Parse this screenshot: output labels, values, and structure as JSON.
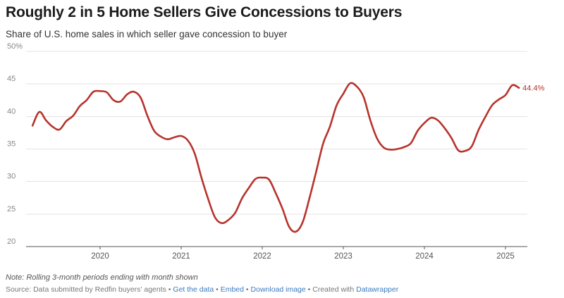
{
  "header": {
    "title": "Roughly 2 in 5 Home Sellers Give Concessions to Buyers",
    "subtitle": "Share of U.S. home sales in which seller gave concession to buyer"
  },
  "footer": {
    "note": "Note: Rolling 3-month periods ending with month shown",
    "source_prefix": "Source: Data submitted by Redfin buyers' agents",
    "sep": " • ",
    "get_data_label": "Get the data",
    "embed_label": "Embed",
    "download_label": "Download image",
    "created_with_prefix": " • Created with ",
    "datawrapper_label": "Datawrapper"
  },
  "colors": {
    "line": "#b7332c",
    "grid": "#e3e3e3",
    "link": "#3b7bbf"
  },
  "chart_data": {
    "type": "line",
    "title": "Roughly 2 in 5 Home Sellers Give Concessions to Buyers",
    "subtitle": "Share of U.S. home sales in which seller gave concession to buyer",
    "xlabel": "",
    "ylabel": "",
    "ylim": [
      20,
      50
    ],
    "yticks": [
      20,
      25,
      30,
      35,
      40,
      45,
      50
    ],
    "ytick_labels": [
      "20",
      "25",
      "30",
      "35",
      "40",
      "45",
      "50%"
    ],
    "xtick_labels": [
      "2020",
      "2021",
      "2022",
      "2023",
      "2024",
      "2025"
    ],
    "grid": true,
    "end_label": "44.4%",
    "series": [
      {
        "values": [
          {
            "x": "2019-03",
            "y": 38.6
          },
          {
            "x": "2019-04",
            "y": 40.7
          },
          {
            "x": "2019-05",
            "y": 39.4
          },
          {
            "x": "2019-06",
            "y": 38.4
          },
          {
            "x": "2019-07",
            "y": 38.0
          },
          {
            "x": "2019-08",
            "y": 39.3
          },
          {
            "x": "2019-09",
            "y": 40.1
          },
          {
            "x": "2019-10",
            "y": 41.6
          },
          {
            "x": "2019-11",
            "y": 42.5
          },
          {
            "x": "2019-12",
            "y": 43.8
          },
          {
            "x": "2020-01",
            "y": 43.9
          },
          {
            "x": "2020-02",
            "y": 43.7
          },
          {
            "x": "2020-03",
            "y": 42.5
          },
          {
            "x": "2020-04",
            "y": 42.3
          },
          {
            "x": "2020-05",
            "y": 43.4
          },
          {
            "x": "2020-06",
            "y": 43.8
          },
          {
            "x": "2020-07",
            "y": 42.9
          },
          {
            "x": "2020-08",
            "y": 40.1
          },
          {
            "x": "2020-09",
            "y": 37.8
          },
          {
            "x": "2020-10",
            "y": 36.9
          },
          {
            "x": "2020-11",
            "y": 36.5
          },
          {
            "x": "2020-12",
            "y": 36.8
          },
          {
            "x": "2021-01",
            "y": 37.0
          },
          {
            "x": "2021-02",
            "y": 36.3
          },
          {
            "x": "2021-03",
            "y": 34.3
          },
          {
            "x": "2021-04",
            "y": 30.6
          },
          {
            "x": "2021-05",
            "y": 27.3
          },
          {
            "x": "2021-06",
            "y": 24.5
          },
          {
            "x": "2021-07",
            "y": 23.6
          },
          {
            "x": "2021-08",
            "y": 24.1
          },
          {
            "x": "2021-09",
            "y": 25.2
          },
          {
            "x": "2021-10",
            "y": 27.4
          },
          {
            "x": "2021-11",
            "y": 29.0
          },
          {
            "x": "2021-12",
            "y": 30.4
          },
          {
            "x": "2022-01",
            "y": 30.6
          },
          {
            "x": "2022-02",
            "y": 30.3
          },
          {
            "x": "2022-03",
            "y": 28.2
          },
          {
            "x": "2022-04",
            "y": 25.8
          },
          {
            "x": "2022-05",
            "y": 23.0
          },
          {
            "x": "2022-06",
            "y": 22.3
          },
          {
            "x": "2022-07",
            "y": 23.8
          },
          {
            "x": "2022-08",
            "y": 27.5
          },
          {
            "x": "2022-09",
            "y": 31.6
          },
          {
            "x": "2022-10",
            "y": 35.8
          },
          {
            "x": "2022-11",
            "y": 38.4
          },
          {
            "x": "2022-12",
            "y": 41.7
          },
          {
            "x": "2023-01",
            "y": 43.5
          },
          {
            "x": "2023-02",
            "y": 45.1
          },
          {
            "x": "2023-03",
            "y": 44.6
          },
          {
            "x": "2023-04",
            "y": 43.0
          },
          {
            "x": "2023-05",
            "y": 39.4
          },
          {
            "x": "2023-06",
            "y": 36.6
          },
          {
            "x": "2023-07",
            "y": 35.2
          },
          {
            "x": "2023-08",
            "y": 34.9
          },
          {
            "x": "2023-09",
            "y": 35.0
          },
          {
            "x": "2023-10",
            "y": 35.3
          },
          {
            "x": "2023-11",
            "y": 35.9
          },
          {
            "x": "2023-12",
            "y": 37.8
          },
          {
            "x": "2024-01",
            "y": 39.0
          },
          {
            "x": "2024-02",
            "y": 39.8
          },
          {
            "x": "2024-03",
            "y": 39.4
          },
          {
            "x": "2024-04",
            "y": 38.2
          },
          {
            "x": "2024-05",
            "y": 36.7
          },
          {
            "x": "2024-06",
            "y": 34.8
          },
          {
            "x": "2024-07",
            "y": 34.7
          },
          {
            "x": "2024-08",
            "y": 35.4
          },
          {
            "x": "2024-09",
            "y": 37.9
          },
          {
            "x": "2024-10",
            "y": 39.9
          },
          {
            "x": "2024-11",
            "y": 41.7
          },
          {
            "x": "2024-12",
            "y": 42.6
          },
          {
            "x": "2025-01",
            "y": 43.3
          },
          {
            "x": "2025-02",
            "y": 44.8
          },
          {
            "x": "2025-03",
            "y": 44.4
          }
        ]
      }
    ]
  }
}
